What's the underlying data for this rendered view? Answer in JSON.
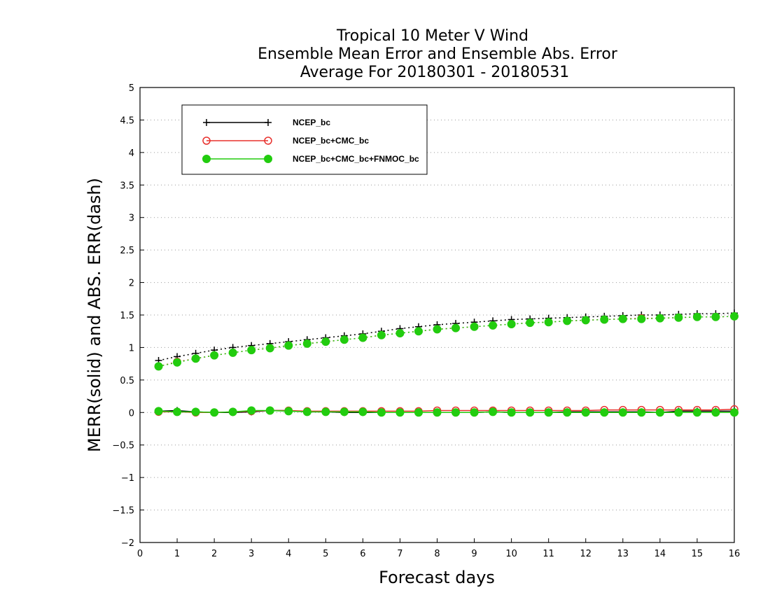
{
  "chart_data": {
    "type": "line",
    "title_lines": [
      "Tropical 10 Meter V Wind",
      "Ensemble Mean Error and Ensemble Abs. Error",
      "Average For 20180301 - 20180531"
    ],
    "xlabel": "Forecast days",
    "ylabel": "MERR(solid) and ABS. ERR(dash)",
    "xlim": [
      0,
      16
    ],
    "ylim": [
      -2,
      5
    ],
    "x_ticks": [
      0,
      1,
      2,
      3,
      4,
      5,
      6,
      7,
      8,
      9,
      10,
      11,
      12,
      13,
      14,
      15,
      16
    ],
    "y_ticks": [
      -2,
      -1.5,
      -1,
      -0.5,
      0,
      0.5,
      1,
      1.5,
      2,
      2.5,
      3,
      3.5,
      4,
      4.5,
      5
    ],
    "grid": "horizontal dotted",
    "legend_position": "top-left",
    "x": [
      0.5,
      1,
      1.5,
      2,
      2.5,
      3,
      3.5,
      4,
      4.5,
      5,
      5.5,
      6,
      6.5,
      7,
      7.5,
      8,
      8.5,
      9,
      9.5,
      10,
      10.5,
      11,
      11.5,
      12,
      12.5,
      13,
      13.5,
      14,
      14.5,
      15,
      15.5,
      16
    ],
    "series": [
      {
        "name": "NCEP_bc",
        "color": "#000000",
        "marker": "plus",
        "mean_error": [
          0.02,
          0.03,
          0.01,
          0.0,
          0.0,
          0.01,
          0.03,
          0.03,
          0.01,
          0.01,
          0.0,
          0.0,
          0.0,
          0.0,
          0.0,
          0.0,
          0.0,
          0.0,
          0.01,
          0.0,
          0.0,
          0.0,
          0.01,
          0.01,
          0.01,
          0.01,
          0.01,
          0.0,
          0.02,
          0.02,
          0.02,
          0.02
        ],
        "abs_error": [
          0.8,
          0.86,
          0.91,
          0.96,
          1.0,
          1.03,
          1.06,
          1.09,
          1.12,
          1.15,
          1.18,
          1.21,
          1.25,
          1.29,
          1.32,
          1.35,
          1.37,
          1.39,
          1.41,
          1.43,
          1.44,
          1.45,
          1.46,
          1.47,
          1.48,
          1.49,
          1.5,
          1.5,
          1.51,
          1.52,
          1.52,
          1.53
        ]
      },
      {
        "name": "NCEP_bc+CMC_bc",
        "color": "#e8302c",
        "marker": "open-circle",
        "mean_error": [
          0.01,
          0.01,
          0.0,
          0.0,
          0.01,
          0.02,
          0.03,
          0.03,
          0.02,
          0.02,
          0.02,
          0.02,
          0.02,
          0.02,
          0.02,
          0.03,
          0.03,
          0.03,
          0.03,
          0.03,
          0.03,
          0.03,
          0.03,
          0.03,
          0.04,
          0.04,
          0.04,
          0.04,
          0.04,
          0.04,
          0.04,
          0.05
        ],
        "abs_error": [
          0.71,
          0.78,
          0.83,
          0.88,
          0.92,
          0.96,
          0.99,
          1.03,
          1.06,
          1.09,
          1.12,
          1.15,
          1.19,
          1.22,
          1.25,
          1.28,
          1.3,
          1.32,
          1.34,
          1.36,
          1.38,
          1.39,
          1.41,
          1.42,
          1.43,
          1.44,
          1.45,
          1.45,
          1.46,
          1.47,
          1.47,
          1.48
        ]
      },
      {
        "name": "NCEP_bc+CMC_bc+FNMOC_bc",
        "color": "#22cc0f",
        "marker": "filled-circle",
        "mean_error": [
          0.02,
          0.01,
          0.01,
          0.0,
          0.01,
          0.03,
          0.03,
          0.02,
          0.01,
          0.01,
          0.01,
          0.01,
          0.0,
          0.0,
          0.0,
          0.0,
          0.0,
          0.0,
          0.01,
          0.0,
          0.0,
          0.0,
          0.0,
          0.0,
          0.0,
          0.0,
          0.0,
          0.0,
          0.0,
          0.0,
          0.0,
          0.0
        ],
        "abs_error": [
          0.71,
          0.77,
          0.83,
          0.88,
          0.92,
          0.96,
          0.99,
          1.03,
          1.06,
          1.09,
          1.12,
          1.15,
          1.19,
          1.22,
          1.25,
          1.28,
          1.3,
          1.32,
          1.34,
          1.36,
          1.38,
          1.39,
          1.41,
          1.42,
          1.43,
          1.44,
          1.44,
          1.45,
          1.46,
          1.47,
          1.47,
          1.48
        ]
      }
    ]
  }
}
